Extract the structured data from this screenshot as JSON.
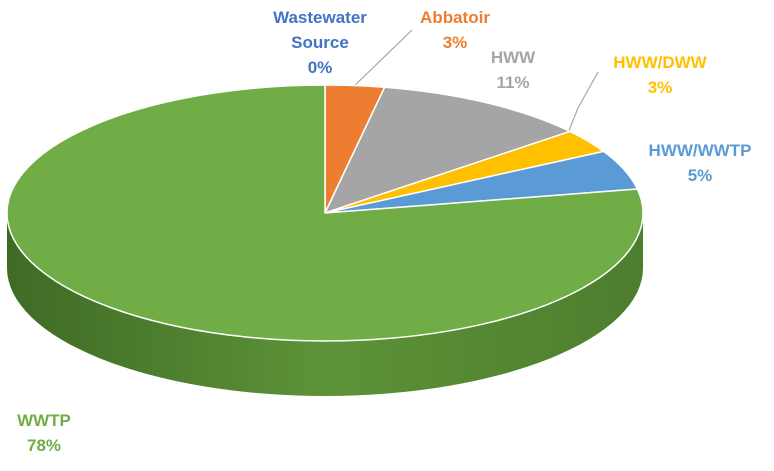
{
  "chart_data": {
    "type": "pie",
    "categories": [
      "Wastewater Source",
      "Abbatoir",
      "HWW",
      "HWW/DWW",
      "HWW/WWTP",
      "WWTP"
    ],
    "values": [
      0,
      3,
      11,
      3,
      5,
      78
    ],
    "value_labels": [
      "0%",
      "3%",
      "11%",
      "3%",
      "5%",
      "78%"
    ],
    "colors": [
      "#4472c4",
      "#ed7d31",
      "#a5a5a5",
      "#ffc000",
      "#5b9bd5",
      "#70ad47"
    ]
  }
}
